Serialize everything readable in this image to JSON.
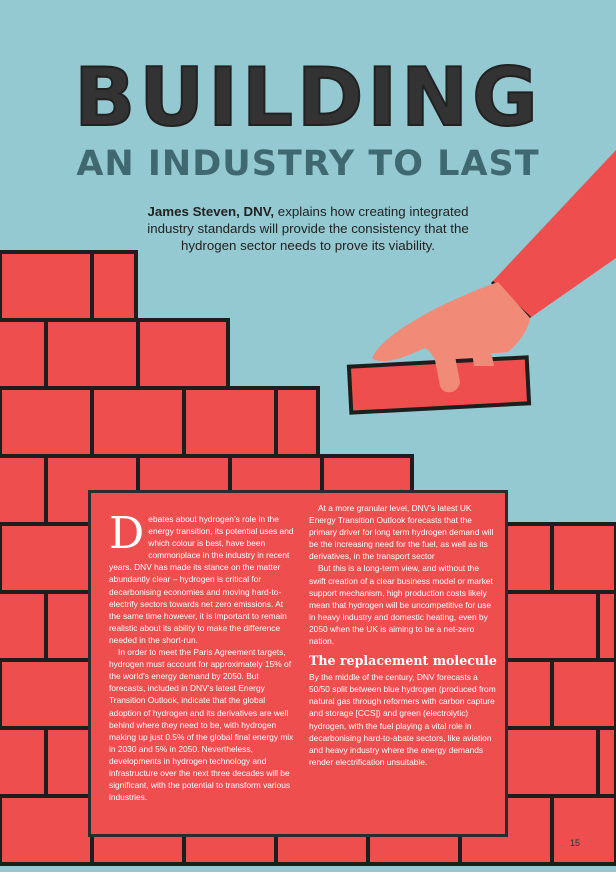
{
  "header": {
    "title": "BUILDING",
    "subtitle": "AN INDUSTRY TO LAST"
  },
  "standfirst": {
    "author": "James Steven, DNV,",
    "text": " explains how creating integrated industry standards will provide the consistency that the hydrogen sector needs to prove its viability."
  },
  "article": {
    "dropcap": "D",
    "col1_p1": "ebates about hydrogen’s role in the energy transition, its potential uses and which colour is best, have been commonplace in the industry in recent years. DNV has made its stance on the matter abundantly clear – hydrogen is critical for decarbonising economies and moving hard-to-electrify sectors towards net zero emissions. At the same time however, it is important to remain realistic about its ability to make the difference needed in the short-run.",
    "col1_p2": "In order to meet the Paris Agreement targets, hydrogen must account for approximately 15% of the world’s energy demand by 2050. But forecasts, included in DNV’s latest Energy Transition Outlook, indicate that the global adoption of hydrogen and its derivatives are well behind where they need to be, with hydrogen making up just 0.5% of the global final energy mix in 2030 and 5% in 2050. Nevertheless, developments in hydrogen technology and infrastructure over the next three decades will be significant, with the potential to transform various industries.",
    "col2_p1": "At a more granular level, DNV’s latest UK Energy Transition Outlook forecasts that the primary driver for long term hydrogen demand will be the increasing need for the fuel, as well as its derivatives, in the transport sector",
    "col2_p2": "But this is a long-term view, and without the swift creation of a clear business model or market support mechanism, high production costs likely mean that hydrogen will be uncompetitive for use in heavy industry and domestic heating, even by 2050 when the UK is aiming to be a net-zero nation.",
    "subhead": "The replacement molecule",
    "col2_p3": "By the middle of the century, DNV forecasts a 50/50 split between blue hydrogen (produced from natural gas through reformers with carbon capture and storage [CCS]) and green (electrolytic) hydrogen, with the fuel playing a vital role in decarbonising hard-to-abate sectors, like aviation and heavy industry where the energy demands render electrification unsuitable."
  },
  "page_number": "15",
  "colors": {
    "sky": "#94c9d1",
    "brick": "#ef4e4f",
    "mortar": "#1e1e1e",
    "hand": "#f28a78",
    "title_dark": "#333333",
    "subtitle_teal": "#3f6870"
  }
}
